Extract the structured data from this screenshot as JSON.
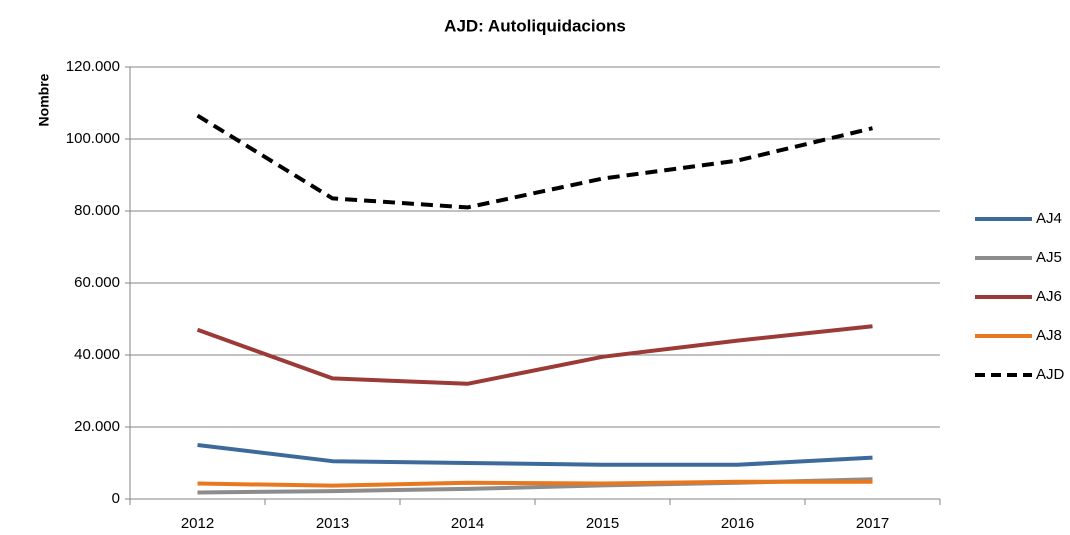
{
  "chart_data": {
    "type": "line",
    "title": "AJD: Autoliquidacions",
    "y_label": "Nombre",
    "categories": [
      "2012",
      "2013",
      "2014",
      "2015",
      "2016",
      "2017"
    ],
    "series": [
      {
        "name": "AJ4",
        "color": "#3e6a9b",
        "values": [
          15000,
          10500,
          10000,
          9500,
          9500,
          11500
        ]
      },
      {
        "name": "AJ5",
        "color": "#8c8c8c",
        "values": [
          1800,
          2200,
          2800,
          3800,
          4500,
          5500
        ]
      },
      {
        "name": "AJ6",
        "color": "#9b3a36",
        "values": [
          47000,
          33500,
          32000,
          39500,
          44000,
          48000
        ]
      },
      {
        "name": "AJ8",
        "color": "#e8781f",
        "values": [
          4300,
          3700,
          4500,
          4300,
          4800,
          4800
        ]
      },
      {
        "name": "AJD",
        "color": "#000000",
        "dashed": true,
        "values": [
          106500,
          83500,
          81000,
          89000,
          94000,
          103000
        ]
      }
    ],
    "ylim": [
      0,
      120000
    ],
    "yticks": [
      0,
      {
        "value": 20000,
        "label": "20.000"
      },
      {
        "value": 40000,
        "label": "40.000"
      },
      {
        "value": 60000,
        "label": "60.000"
      },
      {
        "value": 80000,
        "label": "80.000"
      },
      {
        "value": 100000,
        "label": "100.000"
      },
      {
        "value": 120000,
        "label": "120.000"
      }
    ],
    "grid": true,
    "legend": "right"
  }
}
